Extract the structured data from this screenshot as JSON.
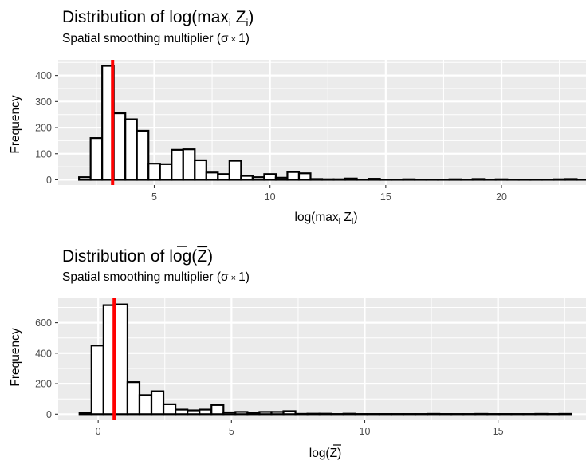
{
  "chart_data": [
    {
      "type": "bar",
      "title": {
        "pre": "Distribution of log(max",
        "sub1": "i",
        "mid": " Z",
        "sub2": "i",
        "post": ")"
      },
      "subtitle": {
        "pre": "Spatial smoothing multiplier (",
        "sigma": "σ",
        "times": " × ",
        "post": "1)"
      },
      "xlabel": {
        "pre": "log(max",
        "sub1": "i",
        "mid": " Z",
        "sub2": "i",
        "post": ")"
      },
      "ylabel": "Frequency",
      "xlim": [
        0.85,
        23.65
      ],
      "ylim": [
        -20,
        460
      ],
      "x_ticks": [
        5,
        10,
        15,
        20
      ],
      "y_ticks": [
        0,
        100,
        200,
        300,
        400
      ],
      "bin_start": 1.75,
      "bin_width": 0.5,
      "counts": [
        10,
        160,
        437,
        255,
        232,
        188,
        62,
        60,
        115,
        117,
        75,
        28,
        22,
        73,
        15,
        10,
        22,
        8,
        30,
        25,
        3,
        2,
        2,
        5,
        1,
        4,
        1,
        1,
        2,
        1,
        1,
        1,
        2,
        1,
        3,
        1,
        2,
        1,
        1,
        1,
        1,
        2,
        3,
        1,
        1,
        1,
        1,
        1,
        5
      ],
      "vline": 3.2,
      "vline_color": "#ff0000",
      "bar_fill": "#ffffff",
      "bar_stroke": "#000000",
      "panel_bg": "#ebebeb",
      "grid_color": "#ffffff"
    },
    {
      "type": "bar",
      "title": {
        "pre": "Distribution of log(",
        "over": "Z",
        "post": ")"
      },
      "subtitle": {
        "pre": "Spatial smoothing multiplier (",
        "sigma": "σ",
        "times": " × ",
        "post": "1)"
      },
      "xlabel": {
        "pre": "log(",
        "over": "Z",
        "post": ")"
      },
      "ylabel": "Frequency",
      "xlim": [
        -1.5,
        18.3
      ],
      "ylim": [
        -35,
        760
      ],
      "x_ticks": [
        0,
        5,
        10,
        15
      ],
      "y_ticks": [
        0,
        200,
        400,
        600
      ],
      "bin_start": -0.7,
      "bin_width": 0.45,
      "counts": [
        10,
        450,
        715,
        720,
        210,
        125,
        150,
        65,
        30,
        25,
        30,
        60,
        12,
        15,
        10,
        15,
        15,
        20,
        2,
        3,
        3,
        1,
        3,
        1,
        1,
        1,
        1,
        1,
        1,
        2,
        1,
        1,
        1,
        2,
        1,
        1,
        1,
        1,
        2,
        1,
        2
      ],
      "vline": 0.6,
      "vline_color": "#ff0000",
      "bar_fill": "#ffffff",
      "bar_stroke": "#000000",
      "panel_bg": "#ebebeb",
      "grid_color": "#ffffff"
    }
  ]
}
